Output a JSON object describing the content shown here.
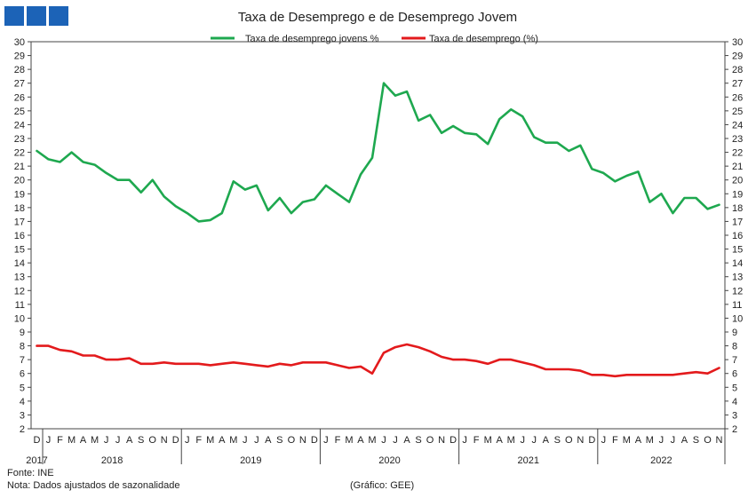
{
  "chart_data": {
    "type": "line",
    "title": "Taxa de Desemprego e de Desemprego Jovem",
    "ylim": [
      2,
      30
    ],
    "y_ticks": [
      2,
      3,
      4,
      5,
      6,
      7,
      8,
      9,
      10,
      11,
      12,
      13,
      14,
      15,
      16,
      17,
      18,
      19,
      20,
      21,
      22,
      23,
      24,
      25,
      26,
      27,
      28,
      29,
      30
    ],
    "secondary_y_axis": true,
    "grid": false,
    "legend_position": "top-center",
    "x_month_labels": [
      "D",
      "J",
      "F",
      "M",
      "A",
      "M",
      "J",
      "J",
      "A",
      "S",
      "O",
      "N",
      "D",
      "J",
      "F",
      "M",
      "A",
      "M",
      "J",
      "J",
      "A",
      "S",
      "O",
      "N",
      "D",
      "J",
      "F",
      "M",
      "A",
      "M",
      "J",
      "J",
      "A",
      "S",
      "O",
      "N",
      "D",
      "J",
      "F",
      "M",
      "A",
      "M",
      "J",
      "J",
      "A",
      "S",
      "O",
      "N",
      "D",
      "J",
      "F",
      "M",
      "A",
      "M",
      "J",
      "J",
      "A",
      "S",
      "O",
      "N"
    ],
    "x_year_labels": [
      {
        "label": "2017",
        "first": 0,
        "last": 0
      },
      {
        "label": "2018",
        "first": 1,
        "last": 12
      },
      {
        "label": "2019",
        "first": 13,
        "last": 24
      },
      {
        "label": "2020",
        "first": 25,
        "last": 36
      },
      {
        "label": "2021",
        "first": 37,
        "last": 48
      },
      {
        "label": "2022",
        "first": 49,
        "last": 59
      }
    ],
    "series": [
      {
        "name": "Taxa de desemprego jovens %",
        "color": "#1ea84f",
        "values": [
          22.1,
          21.5,
          21.3,
          22.0,
          21.3,
          21.1,
          20.5,
          20.0,
          20.0,
          19.1,
          20.0,
          18.8,
          18.1,
          17.6,
          17.0,
          17.1,
          17.6,
          19.9,
          19.3,
          19.6,
          17.8,
          18.7,
          17.6,
          18.4,
          18.6,
          19.6,
          19.0,
          18.4,
          20.4,
          21.6,
          27.0,
          26.1,
          26.4,
          24.3,
          24.7,
          23.4,
          23.9,
          23.4,
          23.3,
          22.6,
          24.4,
          25.1,
          24.6,
          23.1,
          22.7,
          22.7,
          22.1,
          22.5,
          20.8,
          20.5,
          19.9,
          20.3,
          20.6,
          18.4,
          19.0,
          17.6,
          18.7,
          18.7,
          17.9,
          18.2
        ]
      },
      {
        "name": "Taxa de desemprego (%)",
        "color": "#e31a1c",
        "values": [
          8.0,
          8.0,
          7.7,
          7.6,
          7.3,
          7.3,
          7.0,
          7.0,
          7.1,
          6.7,
          6.7,
          6.8,
          6.7,
          6.7,
          6.7,
          6.6,
          6.7,
          6.8,
          6.7,
          6.6,
          6.5,
          6.7,
          6.6,
          6.8,
          6.8,
          6.8,
          6.6,
          6.4,
          6.5,
          6.0,
          7.5,
          7.9,
          8.1,
          7.9,
          7.6,
          7.2,
          7.0,
          7.0,
          6.9,
          6.7,
          7.0,
          7.0,
          6.8,
          6.6,
          6.3,
          6.3,
          6.3,
          6.2,
          5.9,
          5.9,
          5.8,
          5.9,
          5.9,
          5.9,
          5.9,
          5.9,
          6.0,
          6.1,
          6.0,
          6.4
        ]
      }
    ]
  },
  "footer": {
    "source": "Fonte: INE",
    "note": "Nota: Dados ajustados de sazonalidade",
    "credit": "(Gráfico: GEE)"
  }
}
